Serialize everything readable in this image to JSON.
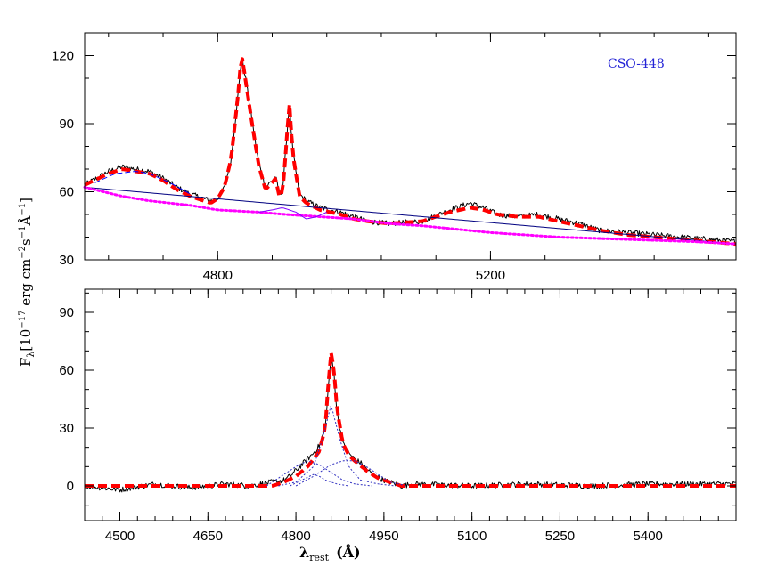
{
  "chart_data": [
    {
      "type": "line",
      "panel": "top",
      "annotation": "CSO-448",
      "annotation_color": "#2323d6",
      "xlim": [
        4605,
        5560
      ],
      "ylim": [
        30,
        130
      ],
      "x_ticks": [
        4800,
        5200
      ],
      "y_ticks": [
        30,
        60,
        90,
        120
      ],
      "grid": false,
      "series": [
        {
          "role": "observed-spectrum",
          "color": "#000000",
          "style": "solid",
          "x": [
            4605,
            4640,
            4660,
            4680,
            4700,
            4720,
            4740,
            4760,
            4780,
            4790,
            4800,
            4810,
            4820,
            4830,
            4835,
            4840,
            4850,
            4860,
            4870,
            4880,
            4885,
            4890,
            4895,
            4900,
            4905,
            4910,
            4920,
            4930,
            4950,
            4980,
            5000,
            5020,
            5050,
            5100,
            5140,
            5170,
            5190,
            5210,
            5240,
            5270,
            5300,
            5330,
            5360,
            5400,
            5440,
            5480,
            5520,
            5560
          ],
          "y": [
            63,
            69,
            71,
            70,
            69,
            66,
            62,
            59,
            57,
            56,
            57,
            62,
            75,
            103,
            119,
            112,
            92,
            73,
            62,
            65,
            67,
            59,
            60,
            79,
            99,
            78,
            59,
            56,
            53,
            51,
            49,
            47,
            46,
            47,
            52,
            55,
            53,
            50,
            49,
            50,
            48,
            46,
            43,
            42,
            41,
            40,
            39,
            38
          ]
        },
        {
          "role": "total-model-fit",
          "color": "#ff0000",
          "style": "dashed",
          "x": [
            4605,
            4640,
            4660,
            4680,
            4700,
            4720,
            4740,
            4760,
            4780,
            4790,
            4800,
            4810,
            4820,
            4830,
            4835,
            4840,
            4850,
            4860,
            4870,
            4880,
            4885,
            4890,
            4895,
            4900,
            4905,
            4910,
            4920,
            4930,
            4950,
            4980,
            5000,
            5020,
            5050,
            5100,
            5140,
            5170,
            5190,
            5210,
            5240,
            5270,
            5300,
            5330,
            5360,
            5400,
            5440,
            5480,
            5520,
            5560
          ],
          "y": [
            63,
            68,
            70,
            69,
            68,
            65,
            61,
            58,
            56,
            55,
            57,
            62,
            75,
            103,
            121,
            111,
            91,
            72,
            61,
            64,
            66,
            58,
            59,
            78,
            100,
            77,
            58,
            55,
            52,
            50,
            48,
            47,
            46,
            47,
            51,
            53,
            52,
            50,
            49,
            49,
            47,
            45,
            43,
            41,
            40,
            39,
            38,
            37
          ]
        },
        {
          "role": "continuum",
          "color": "#000080",
          "style": "solid",
          "x": [
            4605,
            5560
          ],
          "y": [
            62,
            37
          ]
        },
        {
          "role": "host-plus-continuum",
          "color": "#ff00ff",
          "style": "dotted",
          "x": [
            4605,
            4660,
            4700,
            4760,
            4800,
            4860,
            4900,
            4950,
            5000,
            5050,
            5100,
            5200,
            5300,
            5400,
            5500,
            5560
          ],
          "y": [
            62,
            58,
            56,
            54,
            52,
            51,
            50,
            49,
            48,
            46,
            45,
            42,
            40,
            39,
            38,
            37
          ]
        },
        {
          "role": "fe-template",
          "color": "#0000ff",
          "style": "dashed",
          "x": [
            4620,
            4650,
            4680,
            4700,
            4730,
            4760
          ],
          "y": [
            64,
            68,
            69,
            68,
            64,
            59
          ]
        },
        {
          "role": "narrow-line-component",
          "color": "#8000ff",
          "style": "solid",
          "x": [
            4860,
            4880,
            4895,
            4905,
            4915,
            4930,
            4945,
            4960
          ],
          "y": [
            51,
            52,
            53,
            52,
            51,
            48,
            49,
            51
          ]
        }
      ]
    },
    {
      "type": "line",
      "panel": "bottom",
      "xlim": [
        4440,
        5550
      ],
      "ylim": [
        -18,
        102
      ],
      "x_ticks": [
        4500,
        4650,
        4800,
        4950,
        5100,
        5250,
        5400
      ],
      "y_ticks": [
        0,
        30,
        60,
        90
      ],
      "xlabel_main": "λ",
      "xlabel_sub": "rest",
      "xlabel_unit": "(Å)",
      "grid": false,
      "series": [
        {
          "role": "residual-spectrum",
          "color": "#000000",
          "style": "solid",
          "x": [
            4440,
            4500,
            4560,
            4620,
            4680,
            4720,
            4760,
            4780,
            4790,
            4800,
            4810,
            4820,
            4830,
            4840,
            4850,
            4855,
            4860,
            4865,
            4870,
            4880,
            4890,
            4900,
            4910,
            4920,
            4930,
            4950,
            4980,
            5000,
            5100,
            5200,
            5300,
            5400,
            5550
          ],
          "y": [
            0,
            -2,
            1,
            -1,
            1,
            0,
            2,
            3,
            5,
            8,
            11,
            14,
            17,
            21,
            30,
            50,
            68,
            58,
            38,
            22,
            17,
            14,
            12,
            9,
            6,
            3,
            0,
            1,
            0,
            1,
            0,
            1,
            1
          ]
        },
        {
          "role": "broad-line-fit",
          "color": "#ff0000",
          "style": "dashed",
          "x": [
            4440,
            4760,
            4780,
            4800,
            4820,
            4840,
            4850,
            4855,
            4860,
            4865,
            4870,
            4880,
            4890,
            4900,
            4920,
            4940,
            4960,
            4980,
            5550
          ],
          "y": [
            0,
            0,
            2,
            5,
            10,
            18,
            30,
            52,
            69,
            60,
            40,
            22,
            16,
            13,
            8,
            4,
            2,
            0,
            0
          ]
        },
        {
          "role": "gaussian-component-1",
          "color": "#3030c0",
          "style": "dotted",
          "x": [
            4770,
            4800,
            4830,
            4845,
            4860,
            4875,
            4890,
            4910,
            4940,
            4970
          ],
          "y": [
            0,
            2,
            10,
            24,
            42,
            24,
            10,
            3,
            1,
            0
          ]
        },
        {
          "role": "gaussian-component-2",
          "color": "#3030c0",
          "style": "dotted",
          "x": [
            4750,
            4780,
            4800,
            4820,
            4840,
            4860,
            4880,
            4900,
            4930
          ],
          "y": [
            0,
            6,
            10,
            13,
            11,
            7,
            3,
            1,
            0
          ]
        },
        {
          "role": "gaussian-component-3",
          "color": "#3030c0",
          "style": "dotted",
          "x": [
            4800,
            4830,
            4860,
            4880,
            4900,
            4920,
            4940,
            4960,
            4990
          ],
          "y": [
            0,
            5,
            11,
            13,
            13,
            10,
            6,
            2,
            0
          ]
        },
        {
          "role": "gaussian-component-4",
          "color": "#3030c0",
          "style": "dotted",
          "x": [
            4790,
            4810,
            4830,
            4840,
            4850,
            4870,
            4890
          ],
          "y": [
            0,
            3,
            6,
            5,
            3,
            1,
            0
          ]
        }
      ]
    }
  ],
  "y_axis_label": "F_λ[10⁻¹⁷ erg cm⁻²s⁻¹Å⁻¹]",
  "ylabel_parts": {
    "main": "F",
    "sub": "λ",
    "body": "[10",
    "exp1": "−17",
    "mid": " erg cm",
    "exp2": "−2",
    "mid2": "s",
    "exp3": "−1",
    "mid3": "Å",
    "exp4": "−1",
    "end": "]"
  }
}
